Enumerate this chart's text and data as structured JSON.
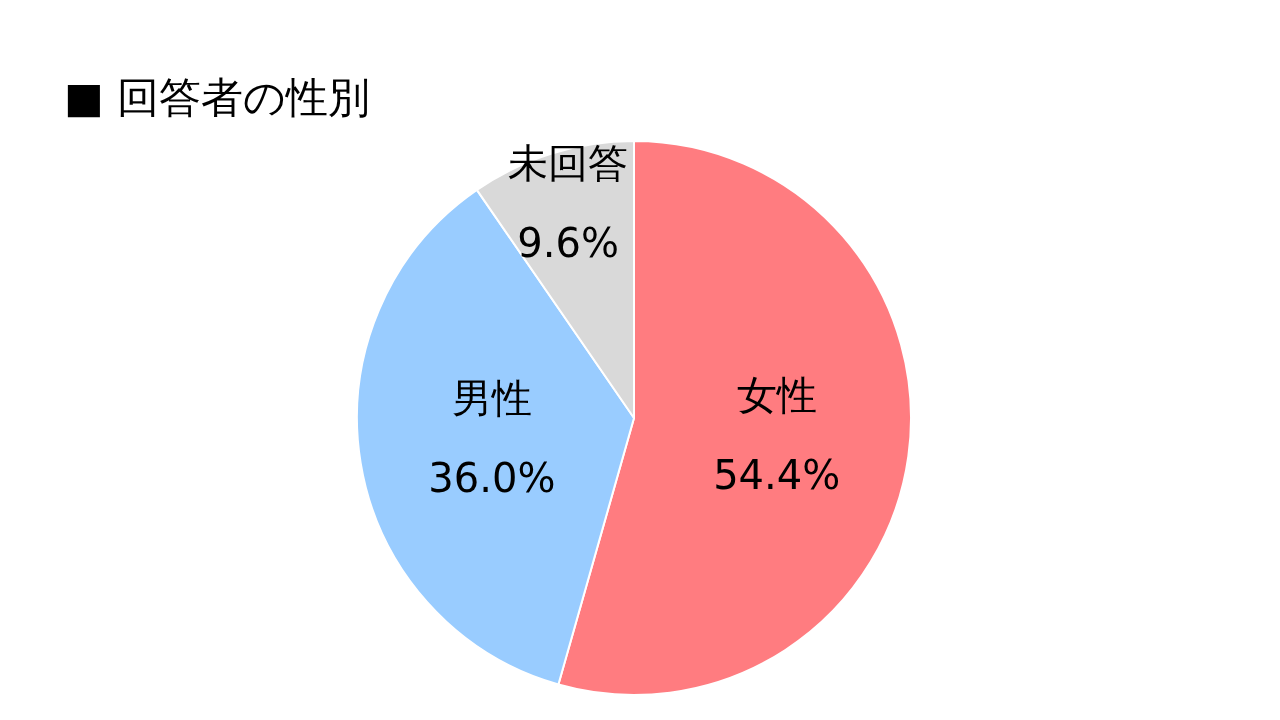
{
  "chart_data": {
    "type": "pie",
    "title": "■ 回答者の性別",
    "categories": [
      "女性",
      "男性",
      "未回答"
    ],
    "values": [
      54.4,
      36.0,
      9.6
    ],
    "colors": [
      "#ff7c80",
      "#99ccff",
      "#d9d9d9"
    ],
    "value_labels": [
      "54.4%",
      "36.0%",
      "9.6%"
    ]
  }
}
